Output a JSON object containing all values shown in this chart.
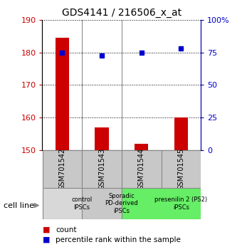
{
  "title": "GDS4141 / 216506_x_at",
  "samples": [
    "GSM701542",
    "GSM701543",
    "GSM701544",
    "GSM701545"
  ],
  "counts": [
    184.5,
    157.0,
    152.0,
    160.0
  ],
  "percentiles": [
    75.0,
    72.5,
    75.0,
    78.0
  ],
  "ylim_left": [
    150,
    190
  ],
  "ylim_right": [
    0,
    100
  ],
  "yticks_left": [
    150,
    160,
    170,
    180,
    190
  ],
  "yticks_right": [
    0,
    25,
    50,
    75,
    100
  ],
  "ytick_labels_right": [
    "0",
    "25",
    "50",
    "75",
    "100%"
  ],
  "bar_color": "#cc0000",
  "dot_color": "#0000cc",
  "groups": [
    {
      "label": "control\nIPSCs",
      "start": 0,
      "end": 1,
      "color": "#d8d8d8"
    },
    {
      "label": "Sporadic\nPD-derived\niPSCs",
      "start": 1,
      "end": 2,
      "color": "#c8c8c8"
    },
    {
      "label": "presenilin 2 (PS2)\niPSCs",
      "start": 2,
      "end": 4,
      "color": "#66ee66"
    }
  ],
  "cell_line_label": "cell line",
  "legend_count_label": "count",
  "legend_percentile_label": "percentile rank within the sample",
  "bar_width": 0.35,
  "sample_box_color": "#c8c8c8"
}
